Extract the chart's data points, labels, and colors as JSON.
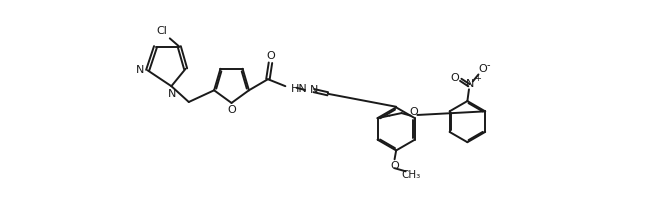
{
  "bg_color": "#ffffff",
  "line_color": "#1a1a1a",
  "line_width": 1.4,
  "figsize": [
    6.53,
    2.23
  ],
  "dpi": 100,
  "xlim": [
    0,
    14
  ],
  "ylim": [
    -3.5,
    3.5
  ]
}
